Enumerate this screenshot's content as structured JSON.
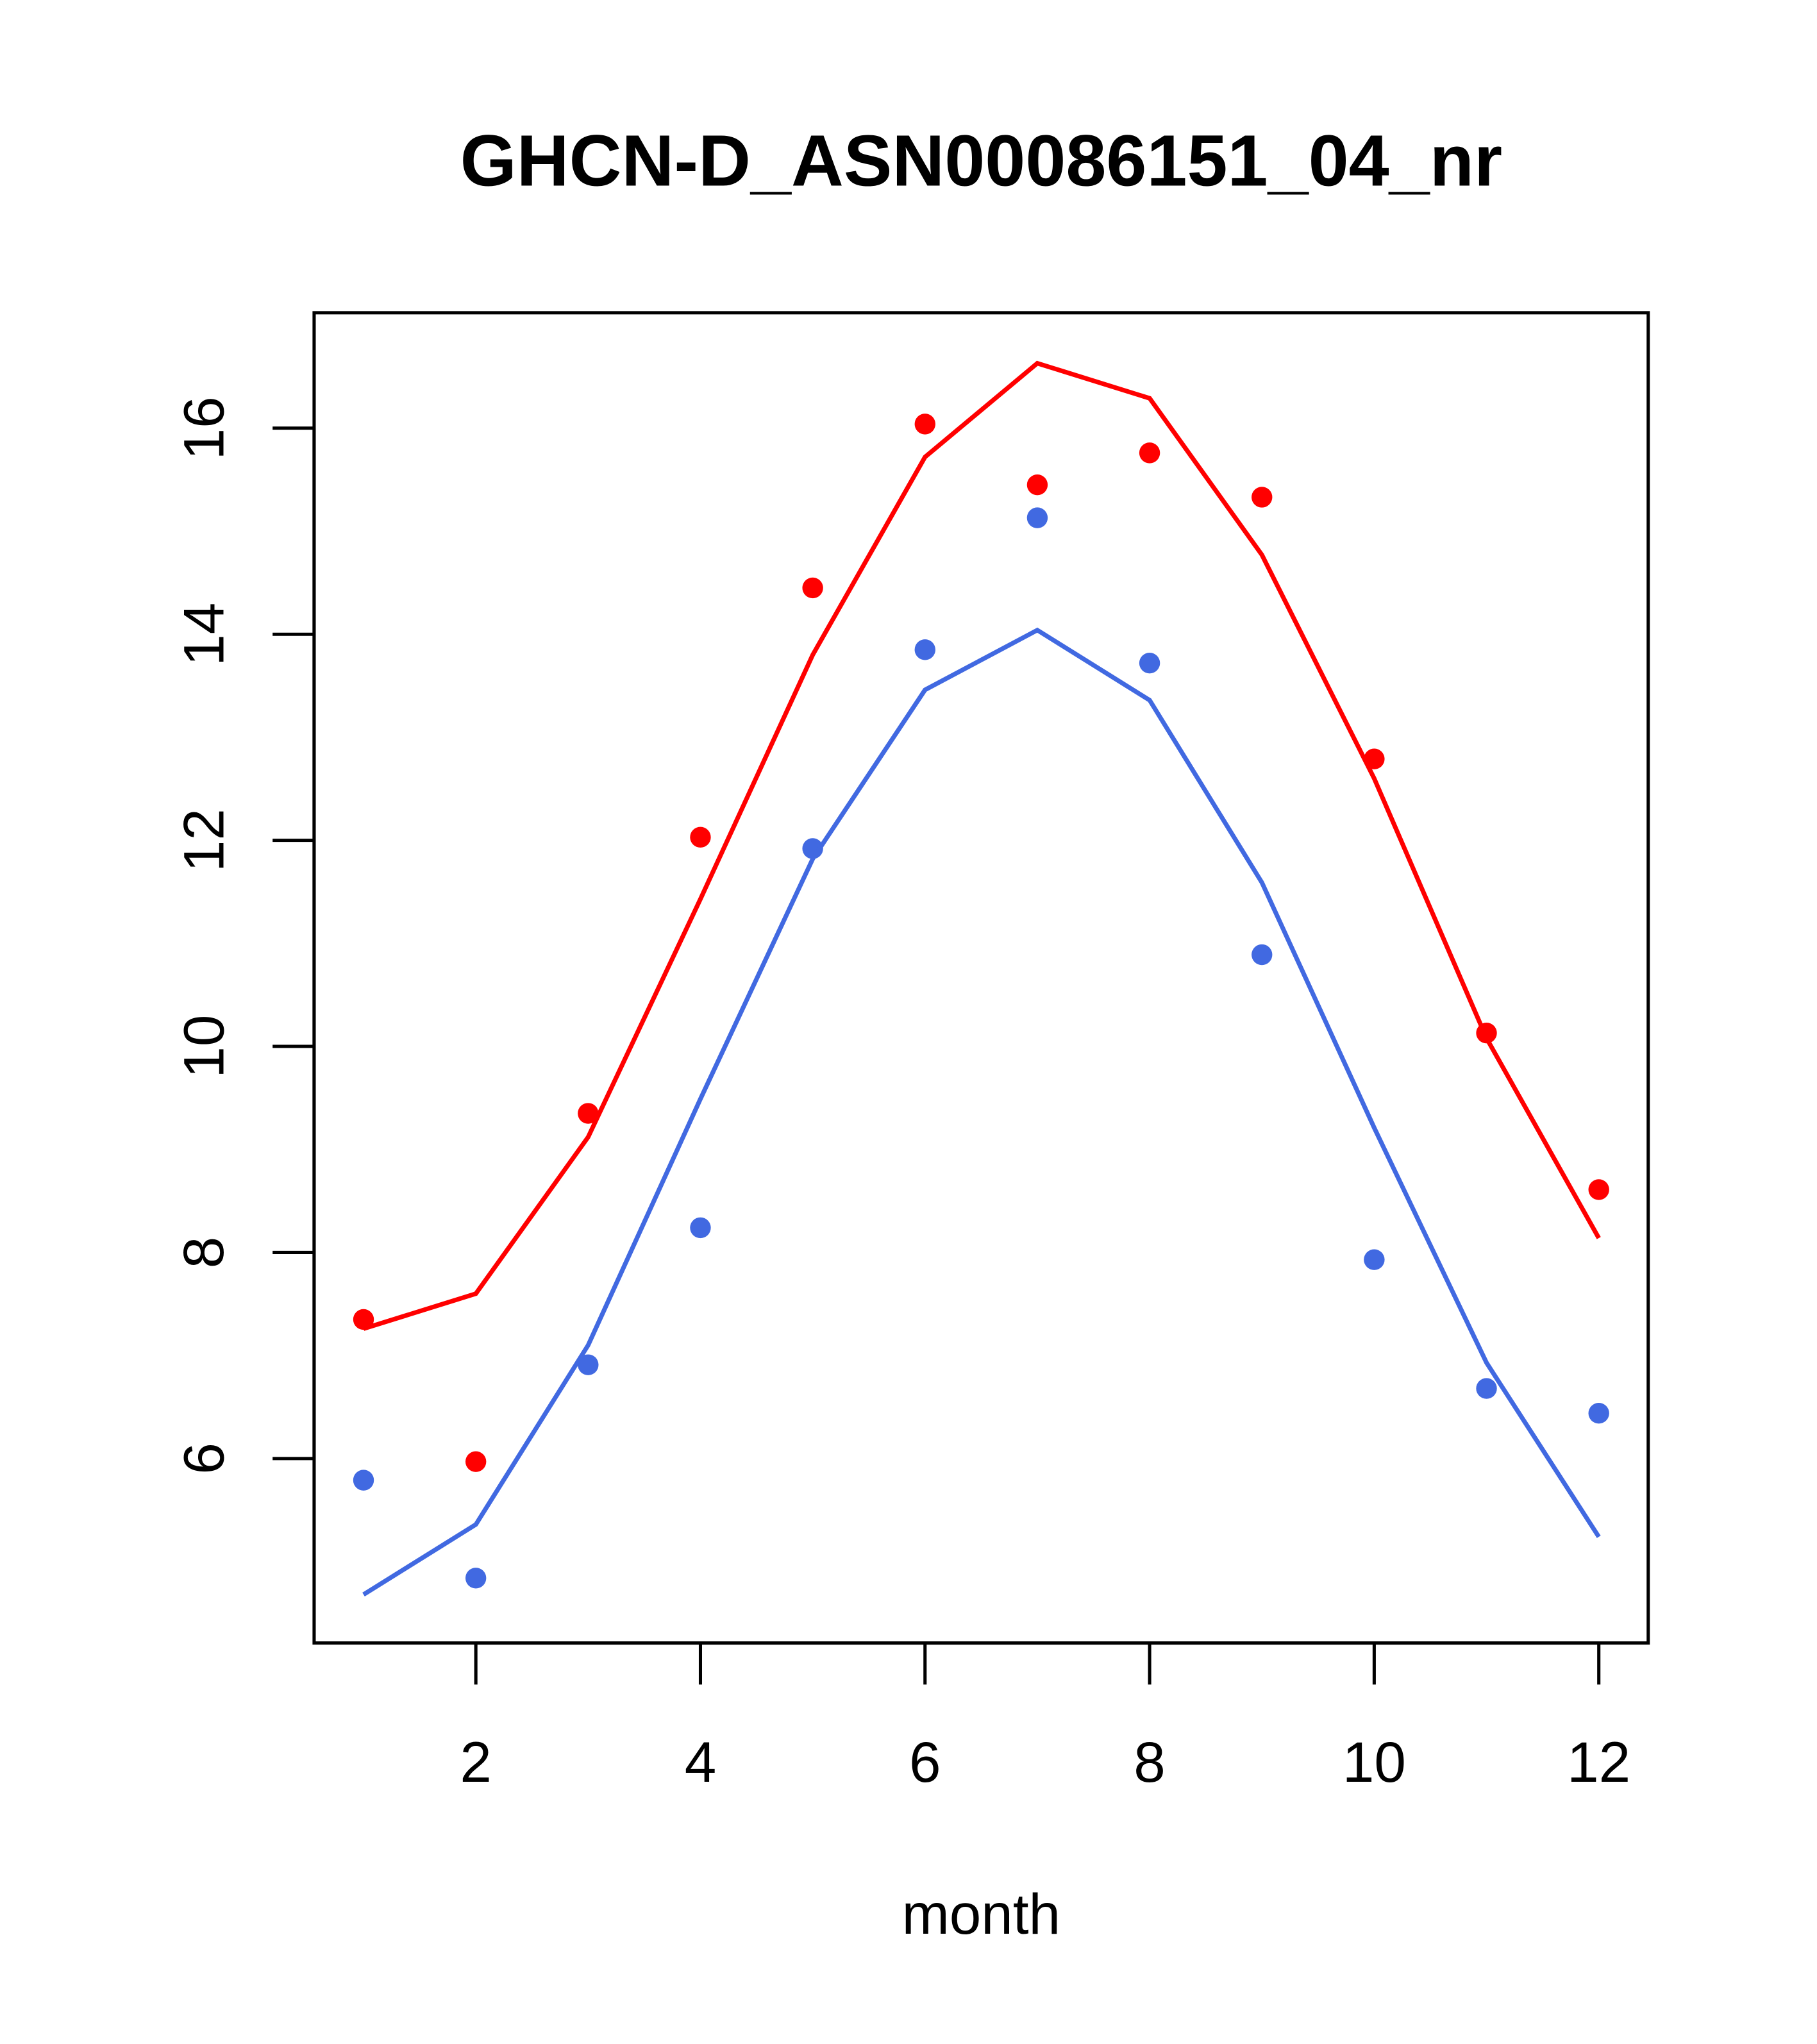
{
  "chart_data": {
    "type": "scatter",
    "title": "GHCN-D_ASN00086151_04_nr",
    "xlabel": "month",
    "ylabel": "",
    "xlim": [
      0.56,
      12.44
    ],
    "ylim": [
      4.21,
      17.12
    ],
    "xticks": [
      2,
      4,
      6,
      8,
      10,
      12
    ],
    "yticks": [
      6,
      8,
      10,
      12,
      14,
      16
    ],
    "xtick_labels": [
      "2",
      "4",
      "6",
      "8",
      "10",
      "12"
    ],
    "ytick_labels": [
      "6",
      "8",
      "10",
      "12",
      "14",
      "16"
    ],
    "grid": false,
    "x": [
      1,
      2,
      3,
      4,
      5,
      6,
      7,
      8,
      9,
      10,
      11,
      12
    ],
    "series": [
      {
        "name": "red points",
        "kind": "points",
        "color": "#ff0000",
        "values": [
          7.35,
          5.97,
          9.35,
          12.03,
          14.45,
          16.04,
          15.45,
          15.76,
          15.33,
          12.79,
          10.13,
          8.61
        ]
      },
      {
        "name": "red line",
        "kind": "line",
        "color": "#ff0000",
        "values": [
          7.26,
          7.6,
          9.12,
          11.43,
          13.8,
          15.72,
          16.63,
          16.29,
          14.77,
          12.6,
          10.08,
          8.14
        ]
      },
      {
        "name": "blue points",
        "kind": "points",
        "color": "#4169e1",
        "values": [
          5.79,
          4.84,
          6.91,
          8.24,
          11.92,
          13.85,
          15.13,
          13.72,
          10.89,
          7.93,
          6.68,
          6.44
        ]
      },
      {
        "name": "blue line",
        "kind": "line",
        "color": "#4169e1",
        "values": [
          4.68,
          5.36,
          7.1,
          9.49,
          11.82,
          13.46,
          14.04,
          13.36,
          11.59,
          9.21,
          6.93,
          5.24
        ]
      }
    ]
  }
}
